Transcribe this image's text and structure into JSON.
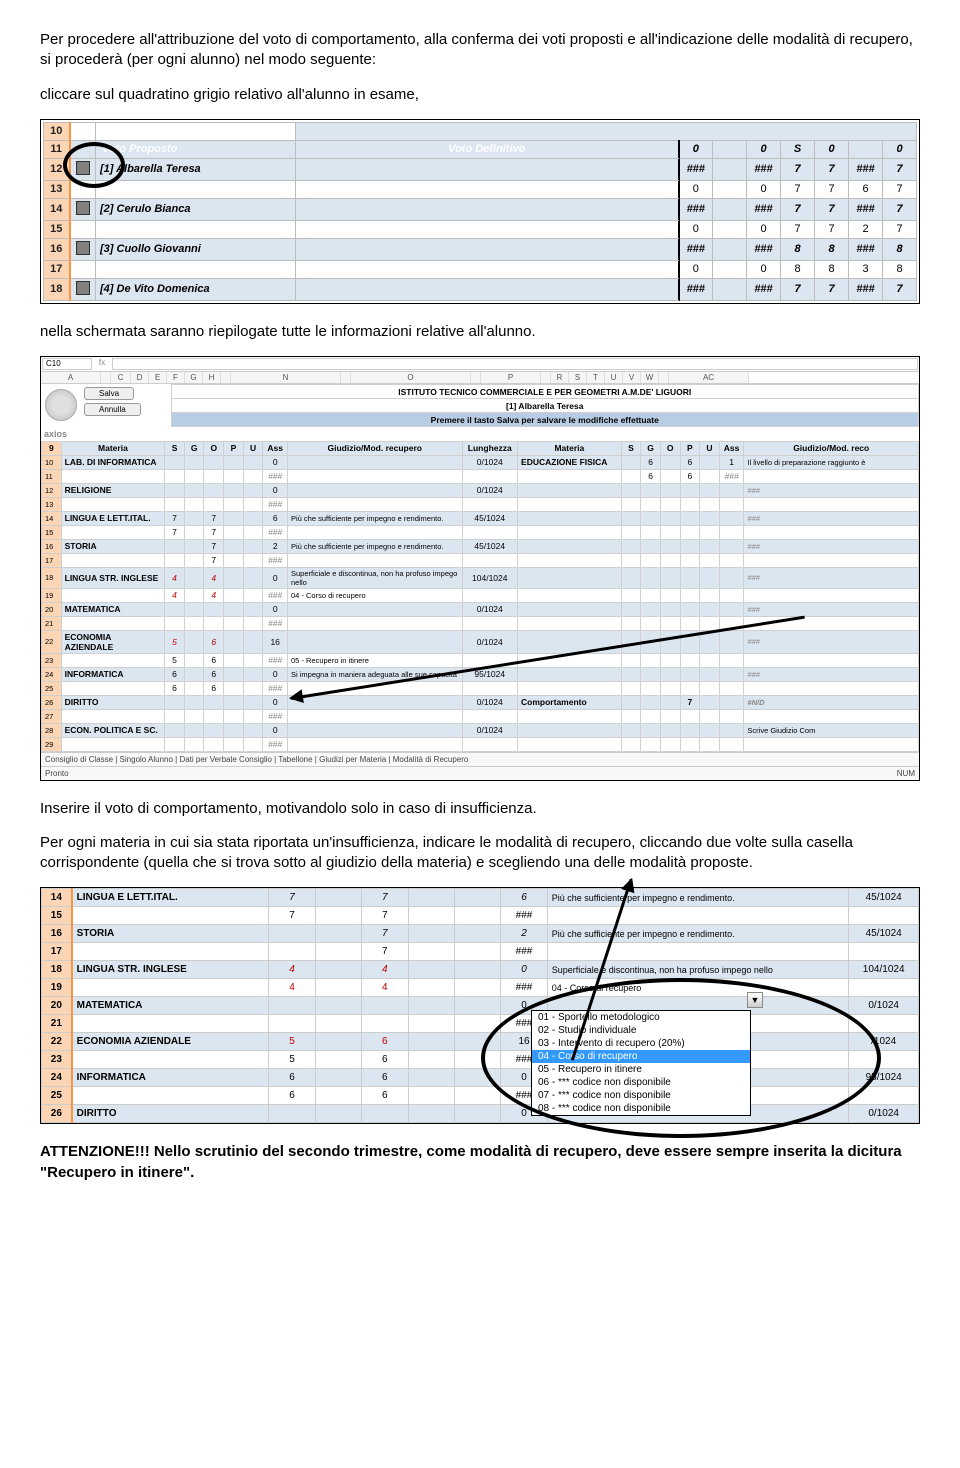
{
  "intro": {
    "p1": "Per procedere all'attribuzione del voto di comportamento, alla conferma dei voti proposti e all'indicazione delle modalità di recupero, si procederà (per ogni alunno) nel modo seguente:",
    "p2": "cliccare sul quadratino grigio relativo all'alunno in esame,"
  },
  "table1": {
    "header_left": "Voto Proposto",
    "header_right": "Voto Definitivo",
    "top_row_nums": [
      "0",
      "",
      "0",
      "S",
      "0",
      "",
      "0"
    ],
    "rows": [
      {
        "n": "10",
        "name": "",
        "check": false,
        "blue": false,
        "prefix": true
      },
      {
        "n": "11",
        "name": "",
        "check": false,
        "blue": true,
        "headers": true
      },
      {
        "n": "12",
        "name": "[1] Albarella Teresa",
        "check": true,
        "blue": true,
        "vals": [
          "###",
          "",
          "###",
          "7",
          "7",
          "###",
          "7"
        ]
      },
      {
        "n": "13",
        "name": "",
        "check": false,
        "blue": false,
        "vals": [
          "0",
          "",
          "0",
          "7",
          "7",
          "6",
          "7"
        ]
      },
      {
        "n": "14",
        "name": "[2] Cerulo Bianca",
        "check": true,
        "blue": true,
        "vals": [
          "###",
          "",
          "###",
          "7",
          "7",
          "###",
          "7"
        ]
      },
      {
        "n": "15",
        "name": "",
        "check": false,
        "blue": false,
        "vals": [
          "0",
          "",
          "0",
          "7",
          "7",
          "2",
          "7"
        ]
      },
      {
        "n": "16",
        "name": "[3] Cuollo Giovanni",
        "check": true,
        "blue": true,
        "vals": [
          "###",
          "",
          "###",
          "8",
          "8",
          "###",
          "8"
        ]
      },
      {
        "n": "17",
        "name": "",
        "check": false,
        "blue": false,
        "vals": [
          "0",
          "",
          "0",
          "8",
          "8",
          "3",
          "8"
        ]
      },
      {
        "n": "18",
        "name": "[4] De Vito Domenica",
        "check": true,
        "blue": true,
        "vals": [
          "###",
          "",
          "###",
          "7",
          "7",
          "###",
          "7"
        ]
      }
    ]
  },
  "mid": {
    "p1": "nella schermata saranno riepilogate tutte le informazioni relative all'alunno."
  },
  "sheet2": {
    "cellref": "C10",
    "col_letters": [
      "A",
      "",
      "C",
      "D",
      "E",
      "F",
      "G",
      "H",
      "",
      "N",
      "",
      "O",
      "",
      "P",
      "",
      "R",
      "S",
      "T",
      "U",
      "V",
      "W",
      "",
      "AC"
    ],
    "title": "ISTITUTO TECNICO COMMERCIALE E PER GEOMETRI A.M.DE' LIGUORI",
    "student": "[1] Albarella Teresa",
    "save": "Salva",
    "cancel": "Annulla",
    "logo2": "axios",
    "banner": "Premere il tasto Salva per salvare le modifiche effettuate",
    "hdr_left": [
      "Materia",
      "S",
      "G",
      "O",
      "P",
      "U",
      "Ass",
      "Giudizio/Mod. recupero",
      "Lunghezza"
    ],
    "hdr_right": [
      "Materia",
      "S",
      "G",
      "O",
      "P",
      "U",
      "Ass",
      "Giudizio/Mod. reco"
    ],
    "left_rows": [
      {
        "n": "10",
        "subj": "LAB. DI INFORMATICA",
        "s": "",
        "g": "",
        "o": "",
        "p": "",
        "u": "",
        "ass": "0",
        "giud": "",
        "lun": "0/1024"
      },
      {
        "n": "11",
        "subj": "",
        "s": "",
        "g": "",
        "o": "",
        "p": "",
        "u": "",
        "ass": "###",
        "giud": "",
        "lun": ""
      },
      {
        "n": "12",
        "subj": "RELIGIONE",
        "s": "",
        "g": "",
        "o": "",
        "p": "",
        "u": "",
        "ass": "0",
        "giud": "",
        "lun": "0/1024"
      },
      {
        "n": "13",
        "subj": "",
        "s": "",
        "g": "",
        "o": "",
        "p": "",
        "u": "",
        "ass": "###",
        "giud": "",
        "lun": ""
      },
      {
        "n": "14",
        "subj": "LINGUA E LETT.ITAL.",
        "s": "7",
        "g": "",
        "o": "7",
        "p": "",
        "u": "",
        "ass": "6",
        "giud": "Più che sufficiente per impegno e rendimento.",
        "lun": "45/1024"
      },
      {
        "n": "15",
        "subj": "",
        "s": "7",
        "g": "",
        "o": "7",
        "p": "",
        "u": "",
        "ass": "###",
        "giud": "",
        "lun": ""
      },
      {
        "n": "16",
        "subj": "STORIA",
        "s": "",
        "g": "",
        "o": "7",
        "p": "",
        "u": "",
        "ass": "2",
        "giud": "Più che sufficiente per impegno e rendimento.",
        "lun": "45/1024"
      },
      {
        "n": "17",
        "subj": "",
        "s": "",
        "g": "",
        "o": "7",
        "p": "",
        "u": "",
        "ass": "###",
        "giud": "",
        "lun": ""
      },
      {
        "n": "18",
        "subj": "LINGUA STR. INGLESE",
        "s": "4",
        "g": "",
        "o": "4",
        "p": "",
        "u": "",
        "ass": "0",
        "giud": "Superficiale e discontinua, non ha profuso impego nello",
        "lun": "104/1024",
        "red": true
      },
      {
        "n": "19",
        "subj": "",
        "s": "4",
        "g": "",
        "o": "4",
        "p": "",
        "u": "",
        "ass": "###",
        "giud": "04 - Corso di recupero",
        "lun": "",
        "red": true
      },
      {
        "n": "20",
        "subj": "MATEMATICA",
        "s": "",
        "g": "",
        "o": "",
        "p": "",
        "u": "",
        "ass": "0",
        "giud": "",
        "lun": "0/1024"
      },
      {
        "n": "21",
        "subj": "",
        "s": "",
        "g": "",
        "o": "",
        "p": "",
        "u": "",
        "ass": "###",
        "giud": "",
        "lun": ""
      },
      {
        "n": "22",
        "subj": "ECONOMIA AZIENDALE",
        "s": "5",
        "g": "",
        "o": "6",
        "p": "",
        "u": "",
        "ass": "16",
        "giud": "",
        "lun": "0/1024",
        "red": true
      },
      {
        "n": "23",
        "subj": "",
        "s": "5",
        "g": "",
        "o": "6",
        "p": "",
        "u": "",
        "ass": "###",
        "giud": "05 - Recupero in itinere",
        "lun": ""
      },
      {
        "n": "24",
        "subj": "INFORMATICA",
        "s": "6",
        "g": "",
        "o": "6",
        "p": "",
        "u": "",
        "ass": "0",
        "giud": "Si impegna in maniera adeguata alle sue capacità",
        "lun": "95/1024"
      },
      {
        "n": "25",
        "subj": "",
        "s": "6",
        "g": "",
        "o": "6",
        "p": "",
        "u": "",
        "ass": "###",
        "giud": "",
        "lun": ""
      },
      {
        "n": "26",
        "subj": "DIRITTO",
        "s": "",
        "g": "",
        "o": "",
        "p": "",
        "u": "",
        "ass": "0",
        "giud": "",
        "lun": "0/1024"
      },
      {
        "n": "27",
        "subj": "",
        "s": "",
        "g": "",
        "o": "",
        "p": "",
        "u": "",
        "ass": "###",
        "giud": "",
        "lun": ""
      },
      {
        "n": "28",
        "subj": "ECON. POLITICA E SC.",
        "s": "",
        "g": "",
        "o": "",
        "p": "",
        "u": "",
        "ass": "0",
        "giud": "",
        "lun": "0/1024"
      },
      {
        "n": "29",
        "subj": "",
        "s": "",
        "g": "",
        "o": "",
        "p": "",
        "u": "",
        "ass": "###",
        "giud": "",
        "lun": ""
      }
    ],
    "right_rows": [
      {
        "subj": "EDUCAZIONE FISICA",
        "s": "",
        "g": "6",
        "o": "",
        "p": "6",
        "u": "",
        "ass": "1",
        "giud": "Il livello di preparazione raggiunto è"
      },
      {
        "subj": "",
        "s": "",
        "g": "6",
        "o": "",
        "p": "6",
        "u": "",
        "ass": "###",
        "giud": ""
      },
      {
        "subj": "",
        "s": "",
        "g": "",
        "o": "",
        "p": "",
        "u": "",
        "ass": "",
        "giud": "###"
      },
      {
        "subj": "",
        "s": "",
        "g": "",
        "o": "",
        "p": "",
        "u": "",
        "ass": "",
        "giud": ""
      },
      {
        "subj": "",
        "s": "",
        "g": "",
        "o": "",
        "p": "",
        "u": "",
        "ass": "",
        "giud": "###"
      },
      {
        "subj": "",
        "s": "",
        "g": "",
        "o": "",
        "p": "",
        "u": "",
        "ass": "",
        "giud": ""
      },
      {
        "subj": "",
        "s": "",
        "g": "",
        "o": "",
        "p": "",
        "u": "",
        "ass": "",
        "giud": "###"
      },
      {
        "subj": "",
        "s": "",
        "g": "",
        "o": "",
        "p": "",
        "u": "",
        "ass": "",
        "giud": ""
      },
      {
        "subj": "",
        "s": "",
        "g": "",
        "o": "",
        "p": "",
        "u": "",
        "ass": "",
        "giud": "###"
      },
      {
        "subj": "",
        "s": "",
        "g": "",
        "o": "",
        "p": "",
        "u": "",
        "ass": "",
        "giud": ""
      },
      {
        "subj": "",
        "s": "",
        "g": "",
        "o": "",
        "p": "",
        "u": "",
        "ass": "",
        "giud": "###"
      },
      {
        "subj": "",
        "s": "",
        "g": "",
        "o": "",
        "p": "",
        "u": "",
        "ass": "",
        "giud": ""
      },
      {
        "subj": "",
        "s": "",
        "g": "",
        "o": "",
        "p": "",
        "u": "",
        "ass": "",
        "giud": "###"
      },
      {
        "subj": "",
        "s": "",
        "g": "",
        "o": "",
        "p": "",
        "u": "",
        "ass": "",
        "giud": ""
      },
      {
        "subj": "",
        "s": "",
        "g": "",
        "o": "",
        "p": "",
        "u": "",
        "ass": "",
        "giud": "###"
      },
      {
        "subj": "",
        "s": "",
        "g": "",
        "o": "",
        "p": "",
        "u": "",
        "ass": "",
        "giud": ""
      },
      {
        "subj": "Comportamento",
        "s": "",
        "g": "",
        "o": "",
        "p": "7",
        "u": "",
        "ass": "",
        "giud": "#N/D",
        "bold": true
      },
      {
        "subj": "",
        "s": "",
        "g": "",
        "o": "",
        "p": "",
        "u": "",
        "ass": "",
        "giud": ""
      },
      {
        "subj": "",
        "s": "",
        "g": "",
        "o": "",
        "p": "",
        "u": "",
        "ass": "",
        "giud": "Scrive Giudizio Com"
      },
      {
        "subj": "",
        "s": "",
        "g": "",
        "o": "",
        "p": "",
        "u": "",
        "ass": "",
        "giud": ""
      }
    ],
    "tabs": "Consiglio di Classe  |  Singolo Alunno  |  Dati per Verbale Consiglio  |  Tabellone  |  Giudizi per Materia  |  Modalità di Recupero",
    "status_left": "Pronto",
    "status_right": "NUM"
  },
  "mid2": {
    "p1": "Inserire il voto di comportamento, motivandolo solo in caso di insufficienza.",
    "p2": "Per ogni materia in cui sia stata riportata un'insufficienza, indicare le modalità di recupero, cliccando due volte sulla casella corrispondente (quella che si trova sotto al giudizio della materia) e scegliendo una delle modalità proposte."
  },
  "sheet3": {
    "rows": [
      {
        "n": "14",
        "subj": "LINGUA E LETT.ITAL.",
        "c": [
          "7",
          "",
          "7",
          "",
          "",
          "6"
        ],
        "giud": "Più che sufficiente per impegno e rendimento.",
        "lun": "45/1024",
        "blue": true,
        "ital": true
      },
      {
        "n": "15",
        "subj": "",
        "c": [
          "7",
          "",
          "7",
          "",
          "",
          "###"
        ],
        "giud": "",
        "lun": "",
        "blue": false
      },
      {
        "n": "16",
        "subj": "STORIA",
        "c": [
          "",
          "",
          "7",
          "",
          "",
          "2"
        ],
        "giud": "Più che sufficiente per impegno e rendimento.",
        "lun": "45/1024",
        "blue": true,
        "ital": true
      },
      {
        "n": "17",
        "subj": "",
        "c": [
          "",
          "",
          "7",
          "",
          "",
          "###"
        ],
        "giud": "",
        "lun": "",
        "blue": false
      },
      {
        "n": "18",
        "subj": "LINGUA STR. INGLESE",
        "c": [
          "4",
          "",
          "4",
          "",
          "",
          "0"
        ],
        "giud": "Superficiale e discontinua, non ha profuso impego nello",
        "lun": "104/1024",
        "blue": true,
        "ital": true,
        "red": true
      },
      {
        "n": "19",
        "subj": "",
        "c": [
          "4",
          "",
          "4",
          "",
          "",
          "###"
        ],
        "giud": "04 - Corso di recupero",
        "lun": "",
        "blue": false,
        "red": true
      },
      {
        "n": "20",
        "subj": "MATEMATICA",
        "c": [
          "",
          "",
          "",
          "",
          "",
          "0"
        ],
        "giud": "",
        "lun": "0/1024",
        "blue": true
      },
      {
        "n": "21",
        "subj": "",
        "c": [
          "",
          "",
          "",
          "",
          "",
          "###"
        ],
        "giud": "",
        "lun": "",
        "blue": false
      },
      {
        "n": "22",
        "subj": "ECONOMIA AZIENDALE",
        "c": [
          "5",
          "",
          "6",
          "",
          "",
          "16"
        ],
        "giud": "",
        "lun": "/1024",
        "blue": true,
        "red": true
      },
      {
        "n": "23",
        "subj": "",
        "c": [
          "5",
          "",
          "6",
          "",
          "",
          "###"
        ],
        "giud": "",
        "lun": "",
        "blue": false
      },
      {
        "n": "24",
        "subj": "INFORMATICA",
        "c": [
          "6",
          "",
          "6",
          "",
          "",
          "0"
        ],
        "giud": "",
        "lun": "95/1024",
        "blue": true
      },
      {
        "n": "25",
        "subj": "",
        "c": [
          "6",
          "",
          "6",
          "",
          "",
          "###"
        ],
        "giud": "",
        "lun": "",
        "blue": false
      },
      {
        "n": "26",
        "subj": "DIRITTO",
        "c": [
          "",
          "",
          "",
          "",
          "",
          "0"
        ],
        "giud": "",
        "lun": "0/1024",
        "blue": true
      }
    ],
    "dropdown": [
      "01 - Sportello metodologico",
      "02 - Studio individuale",
      "03 - Intervento di recupero (20%)",
      "04 - Corso di recupero",
      "05 - Recupero in itinere",
      "06 - *** codice non disponibile",
      "07 - *** codice non disponibile",
      "08 - *** codice non disponibile"
    ],
    "dropdown_selected_index": 3
  },
  "warn": {
    "t1": "ATTENZIONE!!! Nello scrutinio del secondo trimestre, come modalità di recupero, deve essere sempre inserita la dicitura \"Recupero in itinere\"."
  }
}
